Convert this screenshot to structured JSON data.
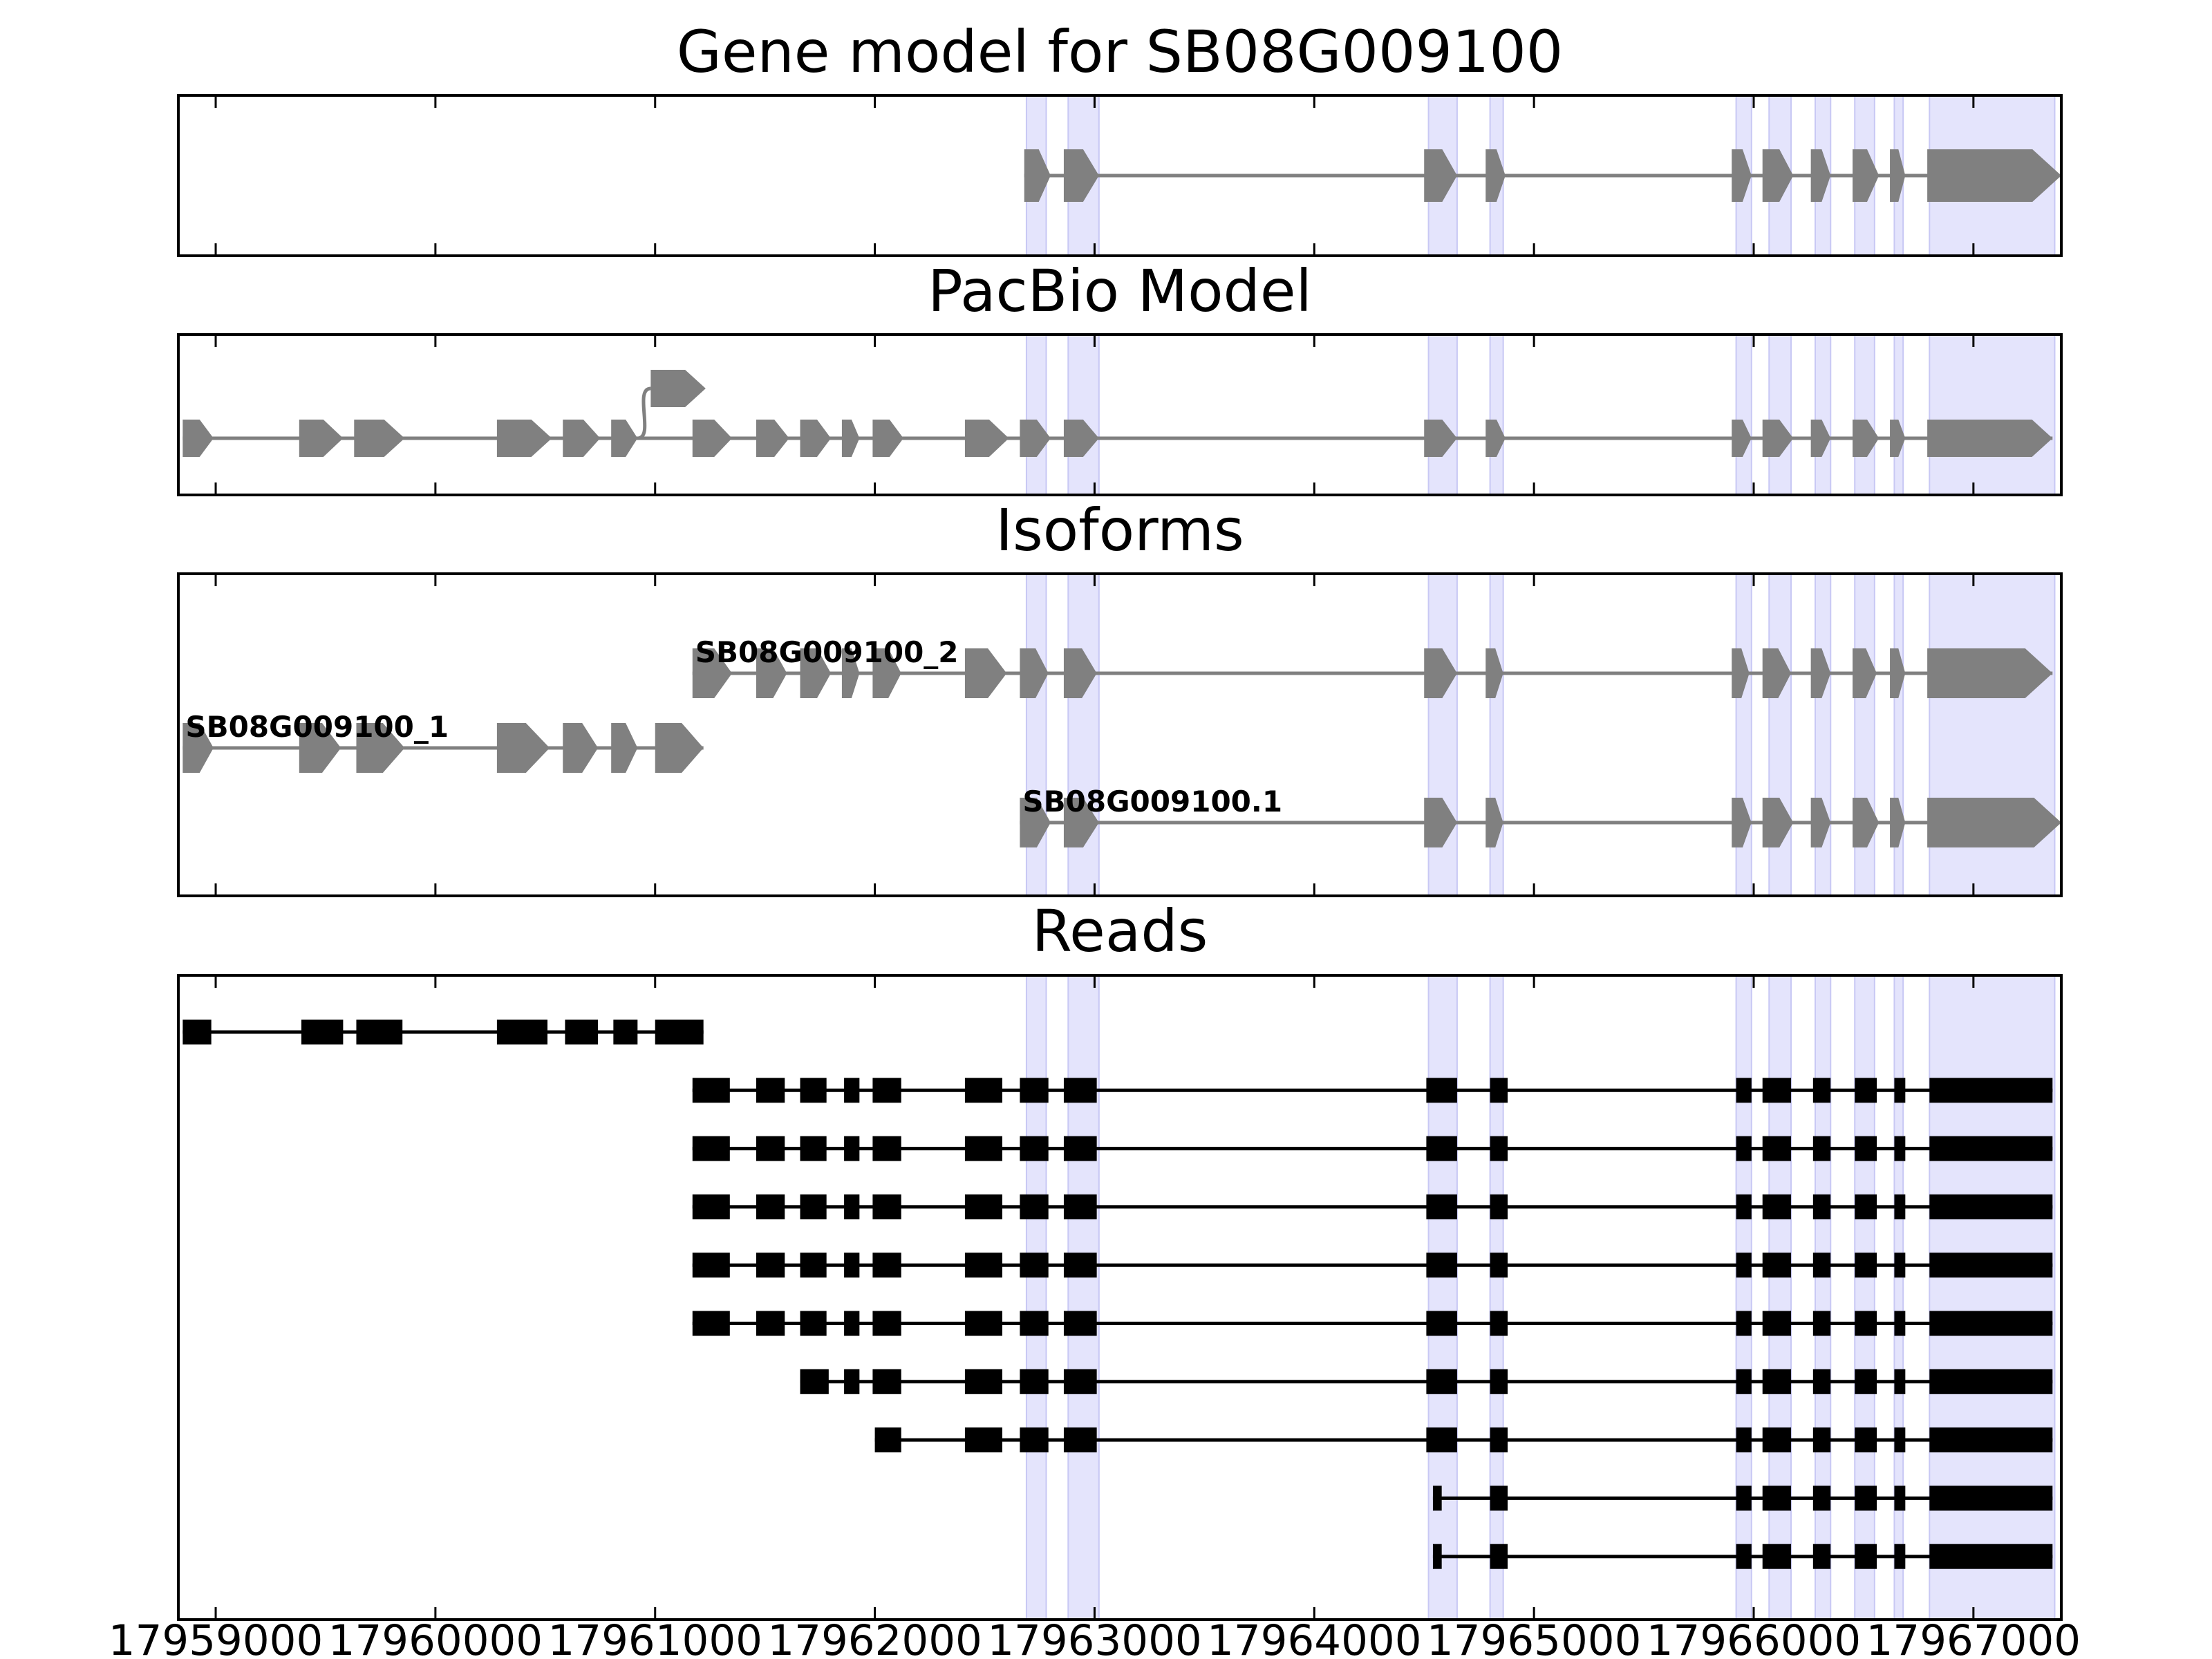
{
  "figure": {
    "gene_id": "SB08G009100",
    "panels": [
      {
        "id": "gene",
        "title": "Gene model for SB08G009100"
      },
      {
        "id": "pacbio",
        "title": "PacBio Model"
      },
      {
        "id": "isoforms",
        "title": "Isoforms"
      },
      {
        "id": "reads",
        "title": "Reads"
      }
    ]
  },
  "axis": {
    "xlim": [
      17958830,
      17967400
    ],
    "ticks": [
      17959000,
      17960000,
      17961000,
      17962000,
      17963000,
      17964000,
      17965000,
      17966000,
      17967000
    ],
    "tick_labels": [
      "17959000",
      "17960000",
      "17961000",
      "17962000",
      "17963000",
      "17964000",
      "17965000",
      "17966000",
      "17967000"
    ]
  },
  "colors": {
    "model_feature": "#808080",
    "read_feature": "#000000",
    "exon_highlight": "#e4e4fc",
    "exon_highlight_edge": "#c8c8f4"
  },
  "highlights": [
    [
      17962690,
      17962780
    ],
    [
      17962880,
      17963020
    ],
    [
      17964520,
      17964650
    ],
    [
      17964800,
      17964860
    ],
    [
      17965920,
      17965990
    ],
    [
      17966070,
      17966170
    ],
    [
      17966280,
      17966350
    ],
    [
      17966460,
      17966550
    ],
    [
      17966640,
      17966680
    ],
    [
      17966800,
      17967370
    ]
  ],
  "gene_model": {
    "strand": "+",
    "exons": [
      [
        17962680,
        17962800
      ],
      [
        17962860,
        17963020
      ],
      [
        17964500,
        17964650
      ],
      [
        17964780,
        17964870
      ],
      [
        17965900,
        17965990
      ],
      [
        17966040,
        17966180
      ],
      [
        17966260,
        17966350
      ],
      [
        17966450,
        17966570
      ],
      [
        17966620,
        17966690
      ],
      [
        17966790,
        17967400
      ]
    ]
  },
  "pacbio_model": {
    "strand": "+",
    "main_exons": [
      [
        17958850,
        17958990
      ],
      [
        17959380,
        17959580
      ],
      [
        17959630,
        17959860
      ],
      [
        17960280,
        17960530
      ],
      [
        17960580,
        17960750
      ],
      [
        17960800,
        17960920
      ],
      [
        17961170,
        17961350
      ],
      [
        17961460,
        17961610
      ],
      [
        17961660,
        17961800
      ],
      [
        17961850,
        17961930
      ],
      [
        17961990,
        17962130
      ],
      [
        17962410,
        17962610
      ],
      [
        17962660,
        17962800
      ],
      [
        17962860,
        17963020
      ],
      [
        17964500,
        17964650
      ],
      [
        17964780,
        17964870
      ],
      [
        17965900,
        17965990
      ],
      [
        17966040,
        17966180
      ],
      [
        17966260,
        17966350
      ],
      [
        17966450,
        17966570
      ],
      [
        17966620,
        17966690
      ],
      [
        17966790,
        17967360
      ]
    ],
    "raised_exon": [
      17960980,
      17961230
    ],
    "bend_from": 17960920
  },
  "isoforms": [
    {
      "name": "SB08G009100_1",
      "strand": "+",
      "exons": [
        [
          17958850,
          17958990
        ],
        [
          17959380,
          17959570
        ],
        [
          17959640,
          17959860
        ],
        [
          17960280,
          17960520
        ],
        [
          17960580,
          17960740
        ],
        [
          17960800,
          17960920
        ],
        [
          17961000,
          17961220
        ]
      ]
    },
    {
      "name": "SB08G009100_2",
      "strand": "+",
      "exons": [
        [
          17961170,
          17961350
        ],
        [
          17961460,
          17961600
        ],
        [
          17961660,
          17961800
        ],
        [
          17961850,
          17961930
        ],
        [
          17961990,
          17962120
        ],
        [
          17962410,
          17962600
        ],
        [
          17962660,
          17962790
        ],
        [
          17962860,
          17963010
        ],
        [
          17964500,
          17964650
        ],
        [
          17964780,
          17964860
        ],
        [
          17965900,
          17965980
        ],
        [
          17966040,
          17966170
        ],
        [
          17966260,
          17966350
        ],
        [
          17966450,
          17966560
        ],
        [
          17966620,
          17966690
        ],
        [
          17966790,
          17967360
        ]
      ]
    },
    {
      "name": "SB08G009100.1",
      "strand": "+",
      "exons": [
        [
          17962660,
          17962800
        ],
        [
          17962860,
          17963020
        ],
        [
          17964500,
          17964650
        ],
        [
          17964780,
          17964860
        ],
        [
          17965900,
          17965990
        ],
        [
          17966040,
          17966180
        ],
        [
          17966260,
          17966350
        ],
        [
          17966450,
          17966570
        ],
        [
          17966620,
          17966690
        ],
        [
          17966790,
          17967400
        ]
      ]
    }
  ],
  "reads": [
    {
      "exons": [
        [
          17958850,
          17958980
        ],
        [
          17959390,
          17959580
        ],
        [
          17959640,
          17959850
        ],
        [
          17960280,
          17960510
        ],
        [
          17960590,
          17960740
        ],
        [
          17960810,
          17960920
        ],
        [
          17961000,
          17961220
        ]
      ]
    },
    {
      "exons": [
        [
          17961170,
          17961340
        ],
        [
          17961460,
          17961590
        ],
        [
          17961660,
          17961780
        ],
        [
          17961860,
          17961930
        ],
        [
          17961990,
          17962120
        ],
        [
          17962410,
          17962580
        ],
        [
          17962660,
          17962790
        ],
        [
          17962860,
          17963010
        ],
        [
          17964510,
          17964650
        ],
        [
          17964800,
          17964880
        ],
        [
          17965920,
          17965990
        ],
        [
          17966040,
          17966170
        ],
        [
          17966270,
          17966350
        ],
        [
          17966460,
          17966560
        ],
        [
          17966640,
          17966690
        ],
        [
          17966800,
          17967360
        ]
      ]
    },
    {
      "exons": [
        [
          17961170,
          17961340
        ],
        [
          17961460,
          17961590
        ],
        [
          17961660,
          17961780
        ],
        [
          17961860,
          17961930
        ],
        [
          17961990,
          17962120
        ],
        [
          17962410,
          17962580
        ],
        [
          17962660,
          17962790
        ],
        [
          17962860,
          17963010
        ],
        [
          17964510,
          17964650
        ],
        [
          17964800,
          17964880
        ],
        [
          17965920,
          17965990
        ],
        [
          17966040,
          17966170
        ],
        [
          17966270,
          17966350
        ],
        [
          17966460,
          17966560
        ],
        [
          17966640,
          17966690
        ],
        [
          17966800,
          17967360
        ]
      ]
    },
    {
      "exons": [
        [
          17961170,
          17961340
        ],
        [
          17961460,
          17961590
        ],
        [
          17961660,
          17961780
        ],
        [
          17961860,
          17961930
        ],
        [
          17961990,
          17962120
        ],
        [
          17962410,
          17962580
        ],
        [
          17962660,
          17962790
        ],
        [
          17962860,
          17963010
        ],
        [
          17964510,
          17964650
        ],
        [
          17964800,
          17964880
        ],
        [
          17965920,
          17965990
        ],
        [
          17966040,
          17966170
        ],
        [
          17966270,
          17966350
        ],
        [
          17966460,
          17966560
        ],
        [
          17966640,
          17966690
        ],
        [
          17966800,
          17967360
        ]
      ]
    },
    {
      "exons": [
        [
          17961170,
          17961340
        ],
        [
          17961460,
          17961590
        ],
        [
          17961660,
          17961780
        ],
        [
          17961860,
          17961930
        ],
        [
          17961990,
          17962120
        ],
        [
          17962410,
          17962580
        ],
        [
          17962660,
          17962790
        ],
        [
          17962860,
          17963010
        ],
        [
          17964510,
          17964650
        ],
        [
          17964800,
          17964880
        ],
        [
          17965920,
          17965990
        ],
        [
          17966040,
          17966170
        ],
        [
          17966270,
          17966350
        ],
        [
          17966460,
          17966560
        ],
        [
          17966640,
          17966690
        ],
        [
          17966800,
          17967360
        ]
      ]
    },
    {
      "exons": [
        [
          17961170,
          17961340
        ],
        [
          17961460,
          17961590
        ],
        [
          17961660,
          17961780
        ],
        [
          17961860,
          17961930
        ],
        [
          17961990,
          17962120
        ],
        [
          17962410,
          17962580
        ],
        [
          17962660,
          17962790
        ],
        [
          17962860,
          17963010
        ],
        [
          17964510,
          17964650
        ],
        [
          17964800,
          17964880
        ],
        [
          17965920,
          17965990
        ],
        [
          17966040,
          17966170
        ],
        [
          17966270,
          17966350
        ],
        [
          17966460,
          17966560
        ],
        [
          17966640,
          17966690
        ],
        [
          17966800,
          17967360
        ]
      ]
    },
    {
      "exons": [
        [
          17961660,
          17961790
        ],
        [
          17961860,
          17961930
        ],
        [
          17961990,
          17962120
        ],
        [
          17962410,
          17962580
        ],
        [
          17962660,
          17962790
        ],
        [
          17962860,
          17963010
        ],
        [
          17964510,
          17964650
        ],
        [
          17964800,
          17964880
        ],
        [
          17965920,
          17965990
        ],
        [
          17966040,
          17966170
        ],
        [
          17966270,
          17966350
        ],
        [
          17966460,
          17966560
        ],
        [
          17966640,
          17966690
        ],
        [
          17966800,
          17967360
        ]
      ]
    },
    {
      "exons": [
        [
          17962000,
          17962120
        ],
        [
          17962410,
          17962580
        ],
        [
          17962660,
          17962790
        ],
        [
          17962860,
          17963010
        ],
        [
          17964510,
          17964650
        ],
        [
          17964800,
          17964880
        ],
        [
          17965920,
          17965990
        ],
        [
          17966040,
          17966170
        ],
        [
          17966270,
          17966350
        ],
        [
          17966460,
          17966560
        ],
        [
          17966640,
          17966690
        ],
        [
          17966800,
          17967360
        ]
      ]
    },
    {
      "exons": [
        [
          17964540,
          17964580
        ],
        [
          17964800,
          17964880
        ],
        [
          17965920,
          17965990
        ],
        [
          17966040,
          17966170
        ],
        [
          17966270,
          17966350
        ],
        [
          17966460,
          17966560
        ],
        [
          17966640,
          17966690
        ],
        [
          17966800,
          17967360
        ]
      ]
    },
    {
      "exons": [
        [
          17964540,
          17964580
        ],
        [
          17964800,
          17964880
        ],
        [
          17965920,
          17965990
        ],
        [
          17966040,
          17966170
        ],
        [
          17966270,
          17966350
        ],
        [
          17966460,
          17966560
        ],
        [
          17966640,
          17966690
        ],
        [
          17966800,
          17967360
        ]
      ]
    }
  ]
}
